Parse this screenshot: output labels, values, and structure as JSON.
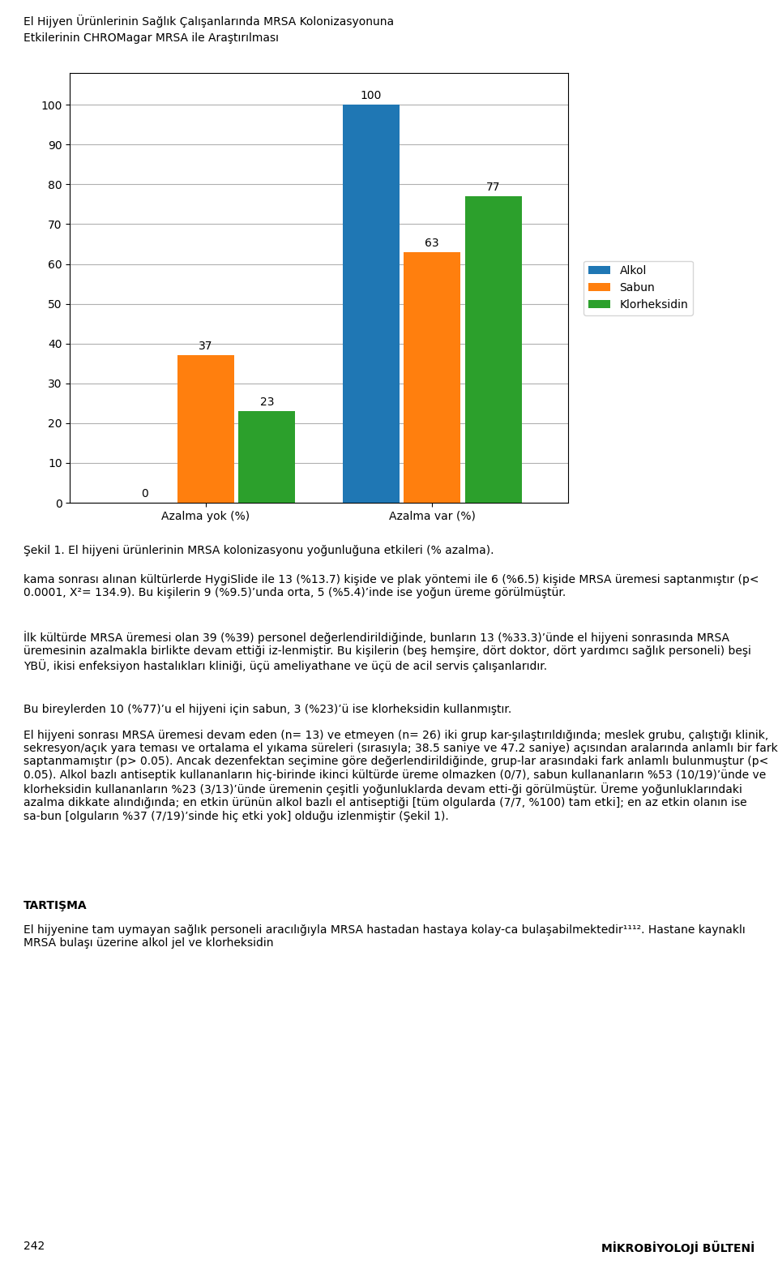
{
  "chart_data": {
    "type": "bar",
    "categories": [
      "Azalma yok (%)",
      "Azalma var (%)"
    ],
    "series": [
      {
        "name": "Alkol",
        "values": [
          0,
          100
        ]
      },
      {
        "name": "Sabun",
        "values": [
          37,
          63
        ]
      },
      {
        "name": "Klorheksidin",
        "values": [
          23,
          77
        ]
      }
    ],
    "ylim": [
      0,
      108
    ],
    "yticks": [
      0,
      10,
      20,
      30,
      40,
      50,
      60,
      70,
      80,
      90,
      100
    ],
    "grid": true,
    "data_labels": true,
    "legend": "right",
    "annotations": [
      "El Hijyen Ürünlerinin Sağlık Çalışanlarında MRSA Kolonizasyonuna",
      "Etkilerinin CHROMagar MRSA ile Araştırılması",
      "Şekil 1. El hijyeni ürünlerinin MRSA kolonizasyonu yoğunluğuna etkileri (% azalma).",
      "kama sonrası alınan kültürlerde HygiSlide ile 13 (%13.7) kişide ve plak yöntemi ile 6 (%6.5) kişide MRSA üremesi saptanmıştır (p< 0.0001, X²= 134.9). Bu kişilerin 9 (%9.5)’unda orta, 5 (%5.4)’inde ise yoğun üreme görülmüştür.",
      "İlk kültürde MRSA üremesi olan 39 (%39) personel değerlendirildiğinde, bunların 13 (%33.3)’ünde el hijyeni sonrasında MRSA üremesinin azalmakla birlikte devam ettiği iz-lenmiştir. Bu kişilerin (beş hemşire, dört doktor, dört yardımcı sağlık personeli) beşi YBÜ, ikisi enfeksiyon hastalıkları kliniği, üçü ameliyathane ve üçü de acil servis çalışanlarıdır.",
      "Bu bireylerden 10 (%77)’u el hijyeni için sabun, 3 (%23)’ü ise klorheksidin kullanmıştır.",
      "El hijyeni sonrası MRSA üremesi devam eden (n= 13) ve etmeyen (n= 26) iki grup kar-şılaştırıldığında; meslek grubu, çalıştığı klinik, sekresyon/açık yara teması ve ortalama el yıkama süreleri (sırasıyla; 38.5 saniye ve 47.2 saniye) açısından aralarında anlamlı bir fark saptanmamıştır (p> 0.05). Ancak dezenfektan seçimine göre değerlendirildiğinde, grup-lar arasındaki fark anlamlı bulunmuştur (p< 0.05). Alkol bazlı antiseptik kullananların hiç-birinde ikinci kültürde üreme olmazken (0/7), sabun kullananların %53 (10/19)’ünde ve klorheksidin kullananların %23 (3/13)’ünde üremenin çeşitli yoğunluklarda devam etti-ği görülmüştür. Üreme yoğunluklarındaki azalma dikkate alındığında; en etkin ürünün alkol bazlı el antiseptiği [tüm olgularda (7/7, %100) tam etki]; en az etkin olanın ise sa-bun [olguların %37 (7/19)’sinde hiç etki yok] olduğu izlenmiştir (Şekil 1).",
      "TARTIŞMA",
      "El hijyenine tam uymayan sağlık personeli aracılığıyla MRSA hastadan hastaya kolay-ca bulaşabilmektedir¹¹¹². Hastane kaynaklı MRSA bulaşı üzerine alkol jel ve klorheksidin",
      "242",
      "MİKROBİYOLOJİ BÜLTENİ"
    ]
  }
}
